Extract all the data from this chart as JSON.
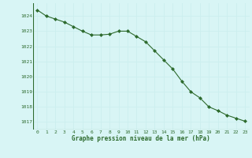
{
  "x": [
    0,
    1,
    2,
    3,
    4,
    5,
    6,
    7,
    8,
    9,
    10,
    11,
    12,
    13,
    14,
    15,
    16,
    17,
    18,
    19,
    20,
    21,
    22,
    23
  ],
  "y": [
    1024.4,
    1024.0,
    1023.8,
    1023.6,
    1023.3,
    1023.0,
    1022.75,
    1022.75,
    1022.8,
    1023.0,
    1023.0,
    1022.65,
    1022.3,
    1021.7,
    1021.1,
    1020.5,
    1019.7,
    1019.0,
    1018.6,
    1018.0,
    1017.75,
    1017.45,
    1017.25,
    1017.05
  ],
  "line_color": "#2d6a2d",
  "marker": "D",
  "marker_size": 2.0,
  "background_color": "#d8f5f5",
  "grid_color": "#aadddd",
  "xlabel": "Graphe pression niveau de la mer (hPa)",
  "xlabel_color": "#2d6a2d",
  "tick_color": "#2d6a2d",
  "ylim": [
    1016.5,
    1024.85
  ],
  "xlim": [
    -0.5,
    23.5
  ],
  "yticks": [
    1017,
    1018,
    1019,
    1020,
    1021,
    1022,
    1023,
    1024
  ],
  "xticks": [
    0,
    1,
    2,
    3,
    4,
    5,
    6,
    7,
    8,
    9,
    10,
    11,
    12,
    13,
    14,
    15,
    16,
    17,
    18,
    19,
    20,
    21,
    22,
    23
  ]
}
